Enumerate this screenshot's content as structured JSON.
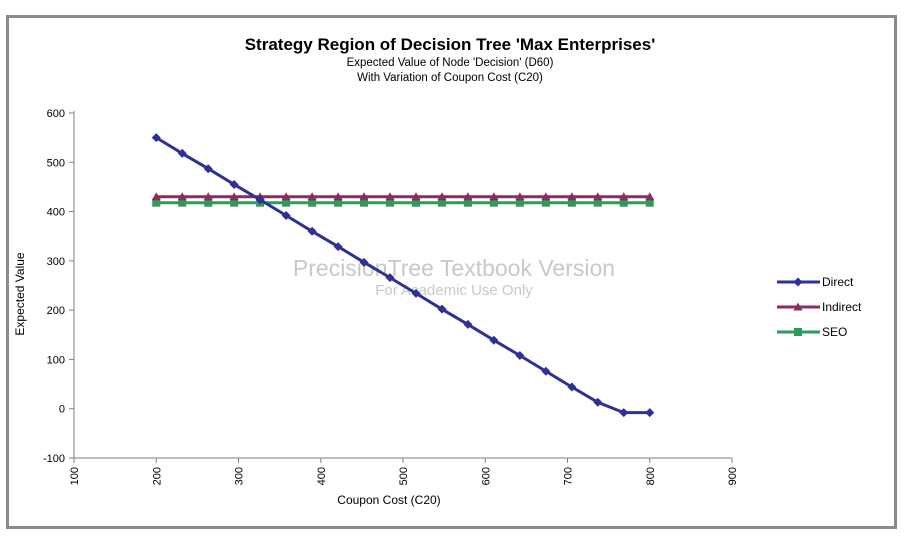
{
  "chart_data": {
    "type": "line",
    "title": "Strategy Region of Decision Tree 'Max Enterprises'",
    "subtitle_lines": [
      "Expected Value of Node 'Decision' (D60)",
      "With Variation of Coupon Cost (C20)"
    ],
    "xlabel": "Coupon Cost (C20)",
    "ylabel": "Expected Value",
    "xlim": [
      100,
      900
    ],
    "ylim": [
      -100,
      600
    ],
    "xticks": [
      100,
      200,
      300,
      400,
      500,
      600,
      700,
      800,
      900
    ],
    "yticks": [
      -100,
      0,
      100,
      200,
      300,
      400,
      500,
      600
    ],
    "x": [
      200,
      231.6,
      263.2,
      294.7,
      326.3,
      357.9,
      389.5,
      421.1,
      452.6,
      484.2,
      515.8,
      547.4,
      578.9,
      610.5,
      642.1,
      673.7,
      705.3,
      736.8,
      768.4,
      800
    ],
    "series": [
      {
        "name": "Direct",
        "color": "#2e3192",
        "marker": "diamond",
        "values": [
          550,
          518,
          487,
          455,
          424,
          392,
          360,
          329,
          297,
          266,
          234,
          202,
          171,
          139,
          108,
          76,
          44,
          13,
          -8,
          -8
        ]
      },
      {
        "name": "Indirect",
        "color": "#8b2c5a",
        "marker": "triangle",
        "values": [
          430,
          430,
          430,
          430,
          430,
          430,
          430,
          430,
          430,
          430,
          430,
          430,
          430,
          430,
          430,
          430,
          430,
          430,
          430,
          430
        ]
      },
      {
        "name": "SEO",
        "color": "#2e9a5c",
        "marker": "square",
        "values": [
          418,
          418,
          418,
          418,
          418,
          418,
          418,
          418,
          418,
          418,
          418,
          418,
          418,
          418,
          418,
          418,
          418,
          418,
          418,
          418
        ]
      }
    ],
    "legend_position": "right",
    "watermark": [
      "PrecisionTree Textbook Version",
      "For Academic Use Only"
    ]
  }
}
